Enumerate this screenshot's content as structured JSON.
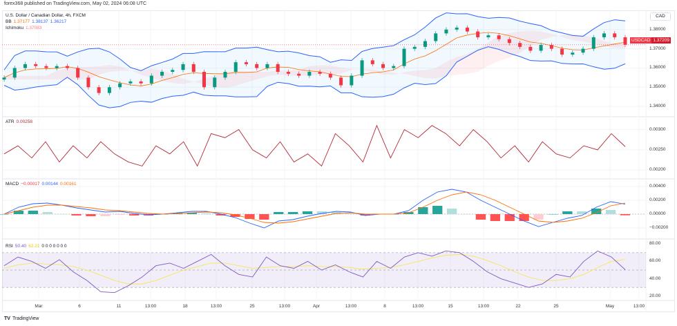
{
  "header": {
    "published": "forex368 published on TradingView.com, May 02, 2024 06:08 UTC"
  },
  "legend": {
    "title": "U.S. Dollar / Canadian Dollar, 4h, FXCM",
    "bb_label": "BB",
    "bb_basis": "1.37177",
    "bb_upper": "1.38137",
    "bb_lower": "1.36217",
    "ichimoku_label": "Ichimoku",
    "ichimoku_value": "1.37083",
    "atr_label": "ATR",
    "atr_value": "0.00258",
    "macd_label": "MACD",
    "macd_hist": "−0.00017",
    "macd_line": "0.00144",
    "macd_signal": "0.00161",
    "rsi_label": "RSI",
    "rsi_value": "50.40",
    "rsi_ma": "62.21",
    "rsi_extra": "0 0 0 0 0 0 0"
  },
  "currency_button": "CAD",
  "price_tag": {
    "symbol": "USDCAD",
    "price": "1.37209"
  },
  "axes": {
    "price": [
      "1.38000",
      "1.37000",
      "1.36000",
      "1.35000",
      "1.34000"
    ],
    "atr": [
      "0.00300",
      "0.00250",
      "0.00200"
    ],
    "macd": [
      "0.00400",
      "0.00200",
      "0.00000",
      "−0.00200"
    ],
    "rsi": [
      "80.00",
      "60.00",
      "40.00",
      "20.00"
    ],
    "x": [
      "Mar",
      "6",
      "11",
      "13:00",
      "18",
      "13:00",
      "25",
      "13:00",
      "Apr",
      "13:00",
      "8",
      "13:00",
      "15",
      "13:00",
      "22",
      "25",
      "May",
      "13:00"
    ]
  },
  "colors": {
    "up": "#089981",
    "down": "#f23645",
    "bb": "#2962ff",
    "basis": "#ff6d00",
    "atr": "#b22833",
    "rsi": "#7e57c2",
    "rsi_ma": "#f7e55c"
  },
  "footer": {
    "brand": "TradingView"
  },
  "chart_data": [
    {
      "type": "candlestick",
      "name": "USDCAD 4h",
      "ylim": [
        1.335,
        1.39
      ],
      "close": [
        1.355,
        1.36,
        1.362,
        1.361,
        1.36,
        1.361,
        1.36,
        1.355,
        1.35,
        1.347,
        1.35,
        1.352,
        1.353,
        1.352,
        1.356,
        1.358,
        1.359,
        1.362,
        1.358,
        1.35,
        1.355,
        1.358,
        1.363,
        1.362,
        1.36,
        1.362,
        1.358,
        1.357,
        1.356,
        1.358,
        1.357,
        1.355,
        1.351,
        1.356,
        1.364,
        1.362,
        1.36,
        1.361,
        1.37,
        1.371,
        1.374,
        1.378,
        1.38,
        1.381,
        1.379,
        1.376,
        1.377,
        1.375,
        1.373,
        1.371,
        1.369,
        1.372,
        1.37,
        1.367,
        1.368,
        1.37,
        1.376,
        1.378,
        1.376,
        1.3721
      ]
    },
    {
      "type": "line",
      "name": "ATR",
      "ylim": [
        0.0018,
        0.0033
      ],
      "values": [
        0.0024,
        0.0026,
        0.0023,
        0.0027,
        0.0022,
        0.0026,
        0.0023,
        0.0027,
        0.0024,
        0.0022,
        0.0021,
        0.0026,
        0.0024,
        0.0027,
        0.0021,
        0.0029,
        0.0028,
        0.003,
        0.0025,
        0.0023,
        0.0027,
        0.0022,
        0.0024,
        0.0021,
        0.0029,
        0.0026,
        0.0022,
        0.0031,
        0.0023,
        0.003,
        0.0028,
        0.0031,
        0.0029,
        0.0026,
        0.003,
        0.0027,
        0.0023,
        0.0026,
        0.0022,
        0.0027,
        0.0024,
        0.0023,
        0.0026,
        0.0025,
        0.0029,
        0.00258
      ]
    },
    {
      "type": "line",
      "name": "MACD",
      "ylim": [
        -0.0035,
        0.005
      ],
      "macd": [
        0.0,
        0.001,
        0.0015,
        0.0016,
        0.0013,
        0.0009,
        0.0006,
        0.0003,
        0.0004,
        0.0001,
        -0.0001,
        0.0,
        0.0002,
        0.0004,
        0.0004,
        0.0,
        -0.0005,
        -0.0013,
        -0.002,
        -0.001,
        -0.0008,
        -0.0003,
        0.0001,
        0.0004,
        0.0003,
        -0.0002,
        0.0,
        0.0,
        0.0005,
        0.002,
        0.0032,
        0.0036,
        0.0032,
        0.002,
        0.001,
        0.0,
        -0.001,
        -0.0018,
        -0.0012,
        -0.0006,
        -0.0002,
        0.001,
        0.0018,
        0.00144
      ],
      "signal": [
        0.0,
        0.0005,
        0.001,
        0.0013,
        0.0013,
        0.0011,
        0.0009,
        0.0006,
        0.0005,
        0.0003,
        0.0001,
        0.0,
        0.0001,
        0.0002,
        0.0003,
        0.0002,
        -0.0001,
        -0.0006,
        -0.0012,
        -0.0013,
        -0.0011,
        -0.0007,
        -0.0003,
        0.0001,
        0.0002,
        0.0,
        0.0,
        0.0,
        0.0002,
        0.001,
        0.002,
        0.0028,
        0.0032,
        0.0028,
        0.002,
        0.001,
        0.0,
        -0.001,
        -0.0012,
        -0.001,
        -0.0006,
        0.0002,
        0.0012,
        0.00161
      ]
    },
    {
      "type": "line",
      "name": "RSI",
      "ylim": [
        15,
        85
      ],
      "band": [
        30,
        70
      ],
      "rsi": [
        55,
        65,
        60,
        52,
        62,
        48,
        38,
        25,
        24,
        32,
        42,
        55,
        58,
        52,
        60,
        68,
        55,
        45,
        42,
        65,
        55,
        52,
        60,
        50,
        56,
        48,
        42,
        60,
        52,
        65,
        70,
        66,
        72,
        70,
        60,
        48,
        40,
        35,
        30,
        34,
        45,
        42,
        60,
        72,
        65,
        50.4
      ],
      "ma": [
        52,
        56,
        58,
        57,
        56,
        54,
        50,
        44,
        38,
        34,
        34,
        38,
        44,
        50,
        54,
        58,
        58,
        55,
        52,
        53,
        54,
        54,
        55,
        54,
        54,
        53,
        51,
        52,
        53,
        56,
        60,
        64,
        67,
        68,
        66,
        61,
        55,
        48,
        42,
        38,
        38,
        40,
        45,
        53,
        60,
        62.21
      ]
    }
  ]
}
